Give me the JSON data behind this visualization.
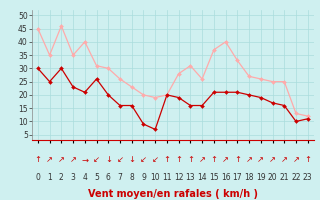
{
  "hours": [
    0,
    1,
    2,
    3,
    4,
    5,
    6,
    7,
    8,
    9,
    10,
    11,
    12,
    13,
    14,
    15,
    16,
    17,
    18,
    19,
    20,
    21,
    22,
    23
  ],
  "wind_avg": [
    30,
    25,
    30,
    23,
    21,
    26,
    20,
    16,
    16,
    9,
    7,
    20,
    19,
    16,
    16,
    21,
    21,
    21,
    20,
    19,
    17,
    16,
    10,
    11
  ],
  "wind_gust": [
    45,
    35,
    46,
    35,
    40,
    31,
    30,
    26,
    23,
    20,
    19,
    20,
    28,
    31,
    26,
    37,
    40,
    33,
    27,
    26,
    25,
    25,
    13,
    12
  ],
  "arrow_symbols": [
    "↑",
    "↗",
    "↗",
    "↗",
    "→",
    "↙",
    "↓",
    "↙",
    "↓",
    "↙",
    "↙",
    "↑",
    "↑",
    "↑",
    "↗",
    "↑",
    "↗",
    "↑",
    "↗",
    "↗",
    "↗",
    "↗",
    "↗",
    "↑"
  ],
  "bg_color": "#cff0f0",
  "grid_color": "#aadddd",
  "avg_color": "#cc0000",
  "gust_color": "#ffaaaa",
  "arrow_color": "#cc0000",
  "xlabel": "Vent moyen/en rafales ( km/h )",
  "yticks": [
    5,
    10,
    15,
    20,
    25,
    30,
    35,
    40,
    45,
    50
  ],
  "ylim": [
    3,
    52
  ],
  "xlim": [
    -0.5,
    23.5
  ],
  "xlabel_color": "#cc0000",
  "xlabel_fontsize": 7,
  "tick_fontsize": 5.5,
  "arrow_fontsize": 6
}
